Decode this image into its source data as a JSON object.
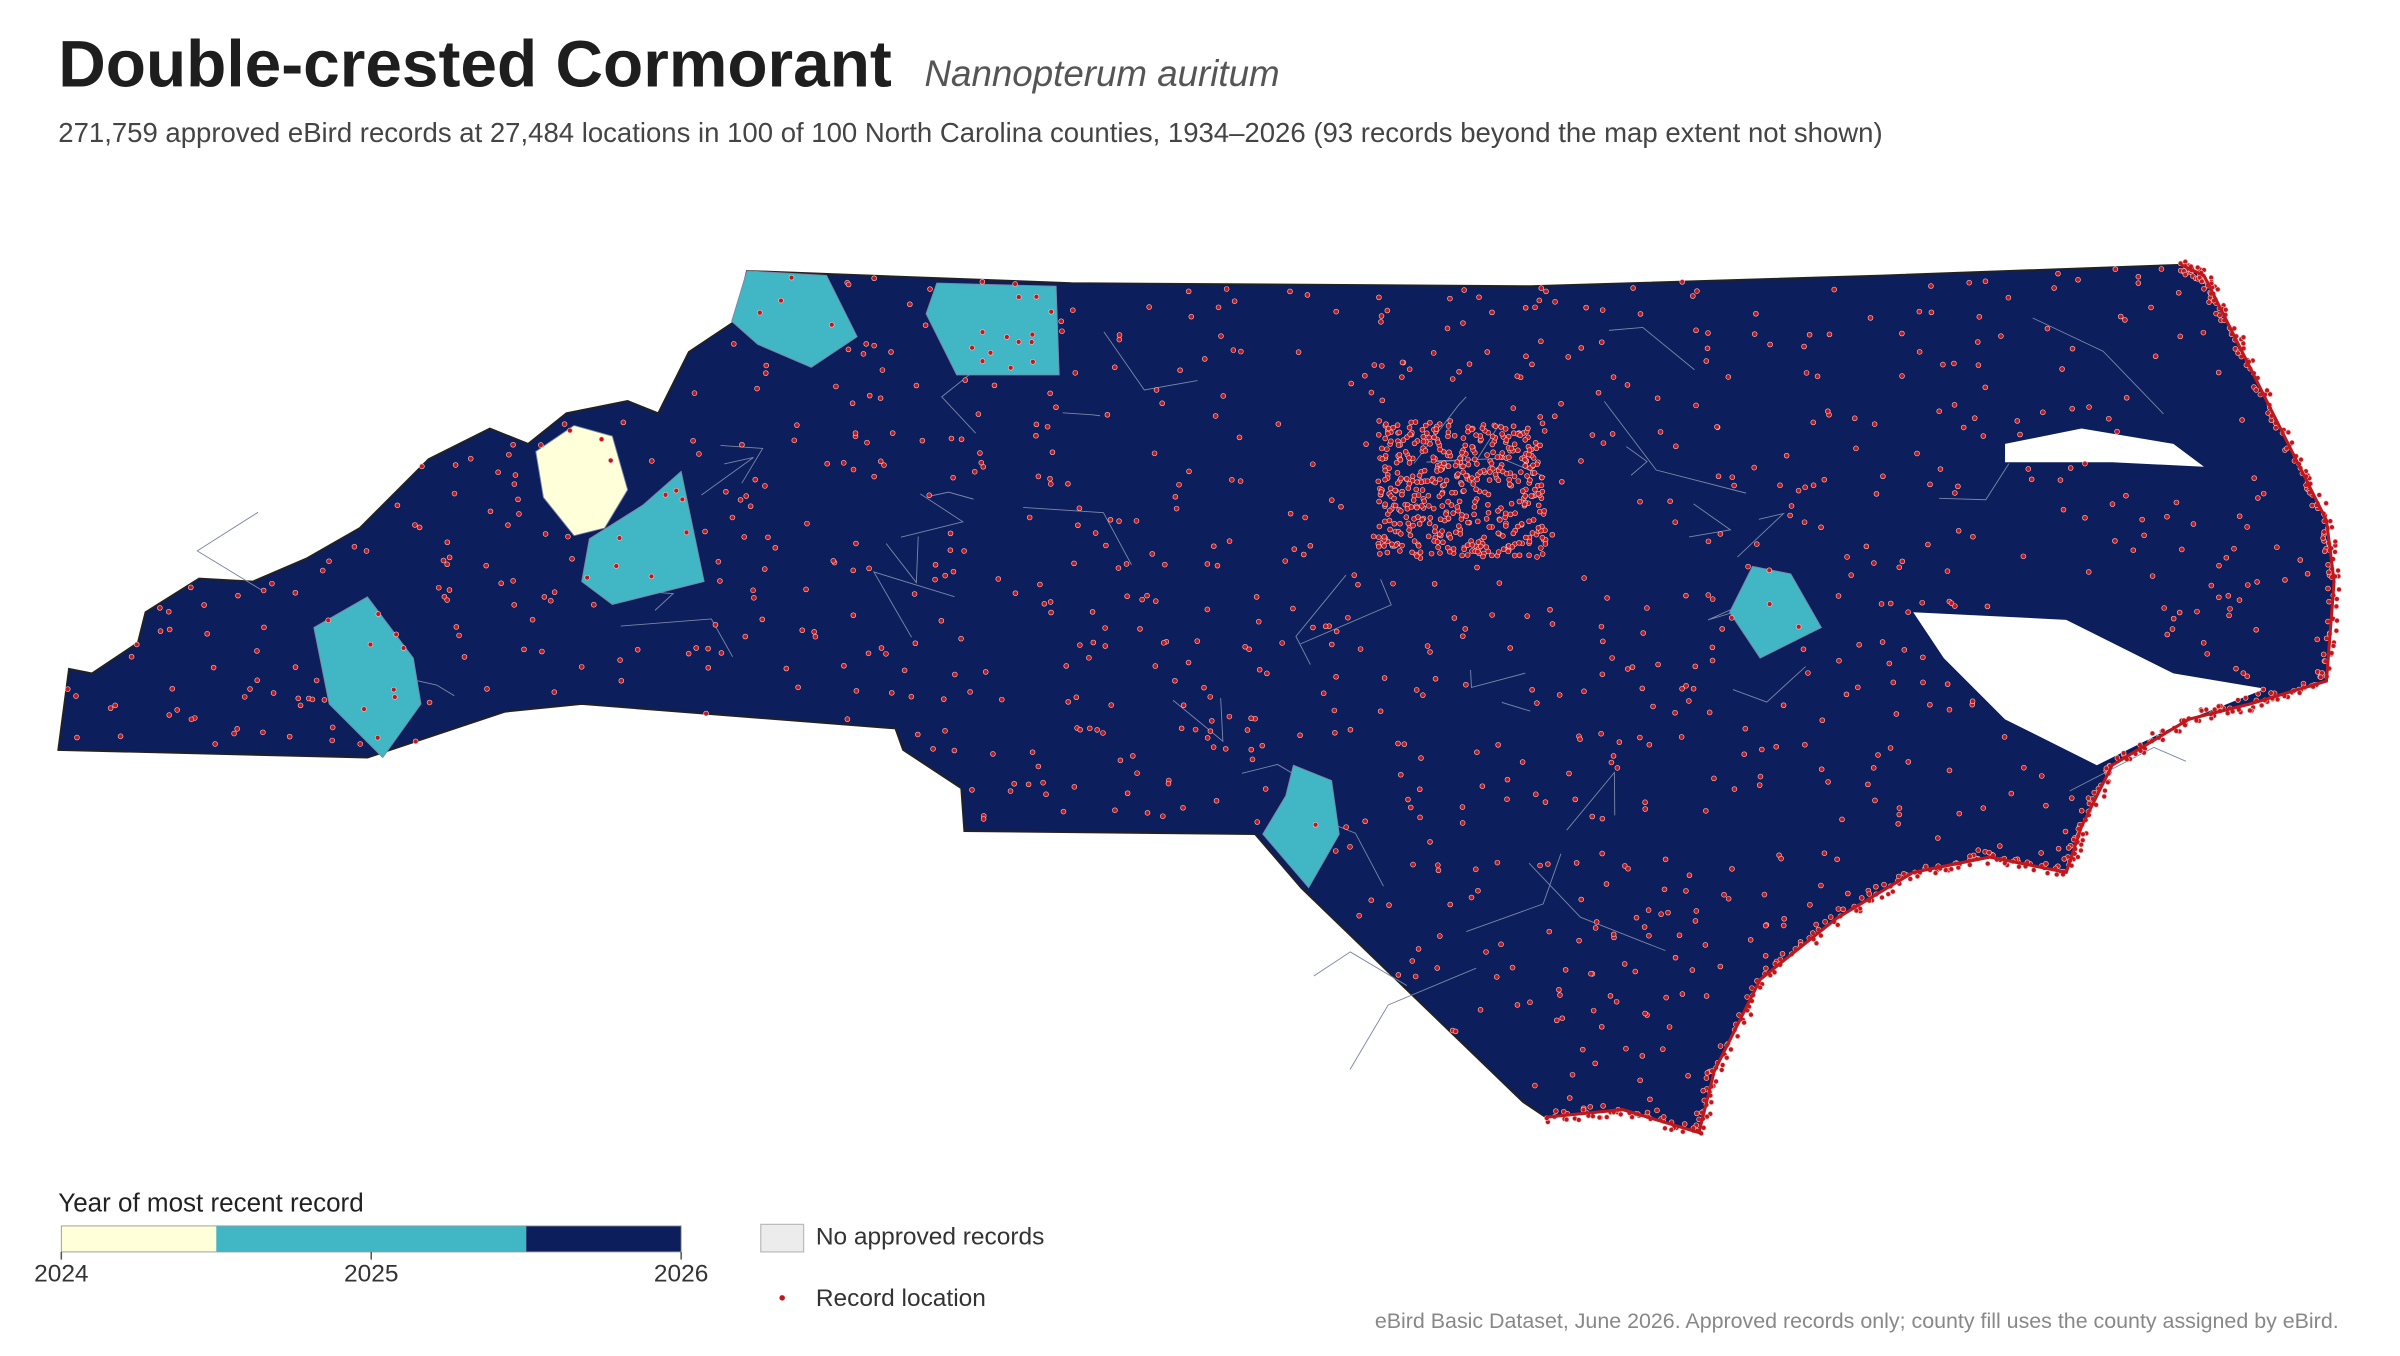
{
  "header": {
    "title": "Double-crested Cormorant",
    "scientific_name": "Nannopterum auritum",
    "description": "271,759 approved eBird records at 27,484 locations in 100 of 100 North Carolina counties, 1934–2026 (93 records beyond the map extent not shown)"
  },
  "legend": {
    "title": "Year of most recent record",
    "xlim": [
      2024,
      2026
    ],
    "ticks": [
      2024,
      2025,
      2026
    ],
    "bins": [
      {
        "from": 2024,
        "to": 2024.5,
        "color": "#ffffd9"
      },
      {
        "from": 2024.5,
        "to": 2025.5,
        "color": "#41b6c4"
      },
      {
        "from": 2025.5,
        "to": 2026,
        "color": "#0c1e5b"
      }
    ],
    "items": [
      {
        "label": "No approved records",
        "color": "#ececec"
      },
      {
        "label": "Record location",
        "color": "#c0171c"
      }
    ]
  },
  "footer": {
    "source": "eBird Basic Dataset, June 2026. Approved records only; county fill uses the county assigned by eBird."
  }
}
